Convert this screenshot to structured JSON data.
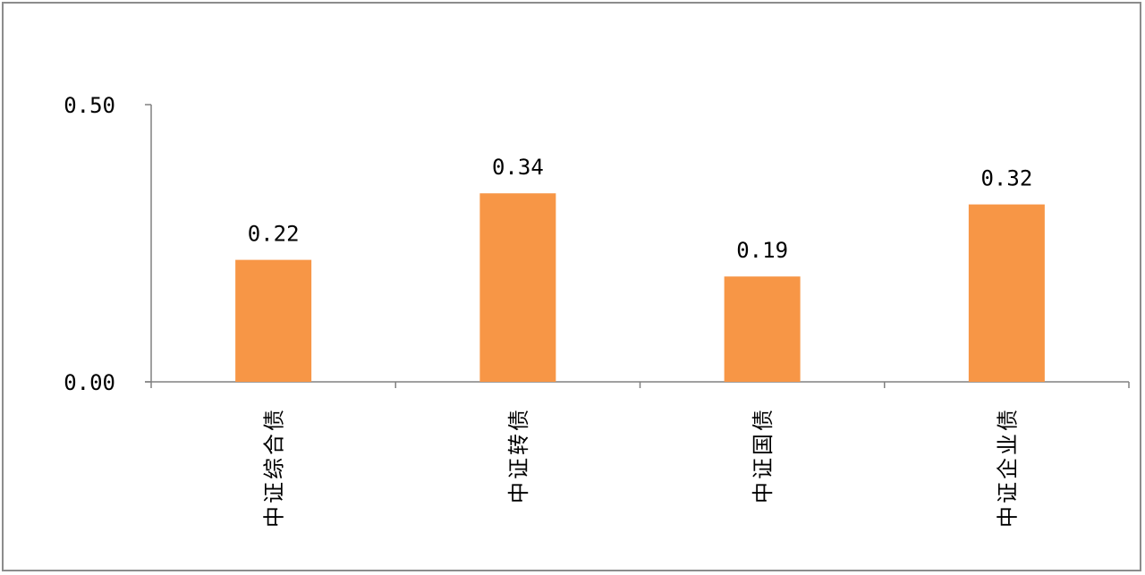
{
  "chart_data": {
    "type": "bar",
    "categories": [
      "中证综合债",
      "中证转债",
      "中证国债",
      "中证企业债"
    ],
    "values": [
      0.22,
      0.34,
      0.19,
      0.32
    ],
    "value_labels": [
      "0.22",
      "0.34",
      "0.19",
      "0.32"
    ],
    "ylim": [
      0,
      0.5
    ],
    "y_ticks": [
      0,
      0.5
    ],
    "y_tick_labels": [
      "0.00",
      "0.50"
    ],
    "grid": false,
    "legend": "none",
    "bar_color": "#f79646",
    "axis_color": "#808080"
  }
}
